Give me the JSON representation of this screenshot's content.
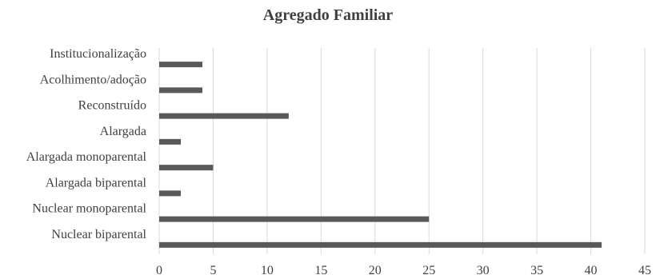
{
  "chart_data": {
    "type": "bar",
    "orientation": "horizontal",
    "title": "Agregado Familiar",
    "xlabel": "",
    "ylabel": "",
    "categories": [
      "Institucionalização",
      "Acolhimento/adoção",
      "Reconstruído",
      "Alargada",
      "Alargada monoparental",
      "Alargada biparental",
      "Nuclear monoparental",
      "Nuclear biparental"
    ],
    "values": [
      4,
      4,
      12,
      2,
      5,
      2,
      25,
      41
    ],
    "xlim": [
      0,
      45
    ],
    "xticks": [
      "0",
      "5",
      "10",
      "15",
      "20",
      "25",
      "30",
      "35",
      "40",
      "45"
    ],
    "grid": "vertical",
    "legend": "none",
    "bar_color": "#595959",
    "grid_color": "#d9d9d9"
  }
}
